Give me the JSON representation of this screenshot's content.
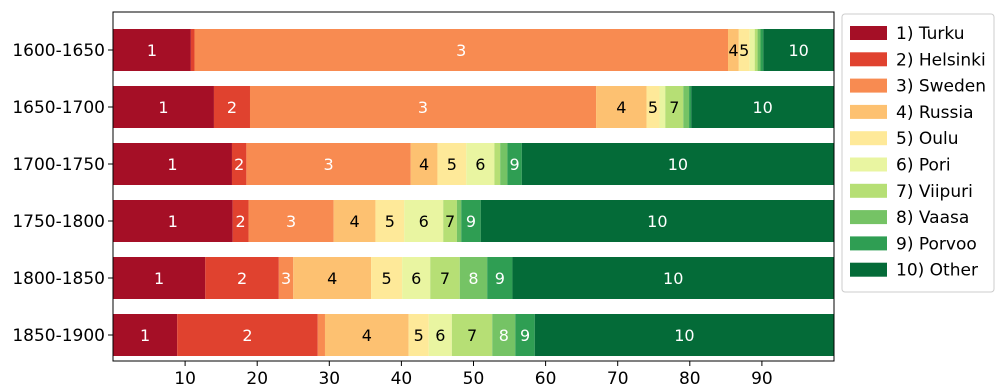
{
  "chart_data": {
    "type": "bar",
    "orientation": "horizontal",
    "stacked": true,
    "categories": [
      "1600-1650",
      "1650-1700",
      "1700-1750",
      "1750-1800",
      "1800-1850",
      "1850-1900"
    ],
    "xlim": [
      0,
      100
    ],
    "xticks": [
      10,
      20,
      30,
      40,
      50,
      60,
      70,
      80,
      90
    ],
    "series": [
      {
        "name": "1) Turku",
        "short": "1",
        "color": "#a50f26",
        "text_color": "#ffffff",
        "values": [
          10.8,
          14.0,
          16.5,
          16.6,
          12.8,
          8.9
        ]
      },
      {
        "name": "2) Helsinki",
        "short": "2",
        "color": "#e0422f",
        "text_color": "#ffffff",
        "values": [
          0.5,
          5.0,
          2.0,
          2.2,
          10.2,
          19.5
        ]
      },
      {
        "name": "3) Sweden",
        "short": "3",
        "color": "#f88b51",
        "text_color": "#ffffff",
        "values": [
          74.0,
          48.0,
          22.8,
          11.8,
          2.0,
          1.0
        ]
      },
      {
        "name": "4) Russia",
        "short": "4",
        "color": "#fdc171",
        "text_color": "#000000",
        "values": [
          1.5,
          7.0,
          3.7,
          5.8,
          10.8,
          11.6
        ]
      },
      {
        "name": "5) Oulu",
        "short": "5",
        "color": "#fee999",
        "text_color": "#000000",
        "values": [
          1.5,
          1.8,
          4.0,
          4.0,
          4.3,
          2.8
        ]
      },
      {
        "name": "6) Pori",
        "short": "6",
        "color": "#e9f5a1",
        "text_color": "#000000",
        "values": [
          0.7,
          0.8,
          3.9,
          5.4,
          3.9,
          3.2
        ]
      },
      {
        "name": "7) Viipuri",
        "short": "7",
        "color": "#b6df75",
        "text_color": "#000000",
        "values": [
          0.4,
          2.5,
          0.8,
          1.9,
          4.1,
          5.6
        ]
      },
      {
        "name": "8) Vaasa",
        "short": "8",
        "color": "#75c365",
        "text_color": "#ffffff",
        "values": [
          0.4,
          0.8,
          1.0,
          0.6,
          3.8,
          3.2
        ]
      },
      {
        "name": "9) Porvoo",
        "short": "9",
        "color": "#2f9e53",
        "text_color": "#ffffff",
        "values": [
          0.4,
          0.3,
          2.0,
          2.7,
          3.5,
          2.7
        ]
      },
      {
        "name": "10) Other",
        "short": "10",
        "color": "#046b38",
        "text_color": "#ffffff",
        "values": [
          9.8,
          19.8,
          43.3,
          49.0,
          44.6,
          41.5
        ]
      }
    ],
    "grid": false,
    "legend": "right-outside-top"
  }
}
